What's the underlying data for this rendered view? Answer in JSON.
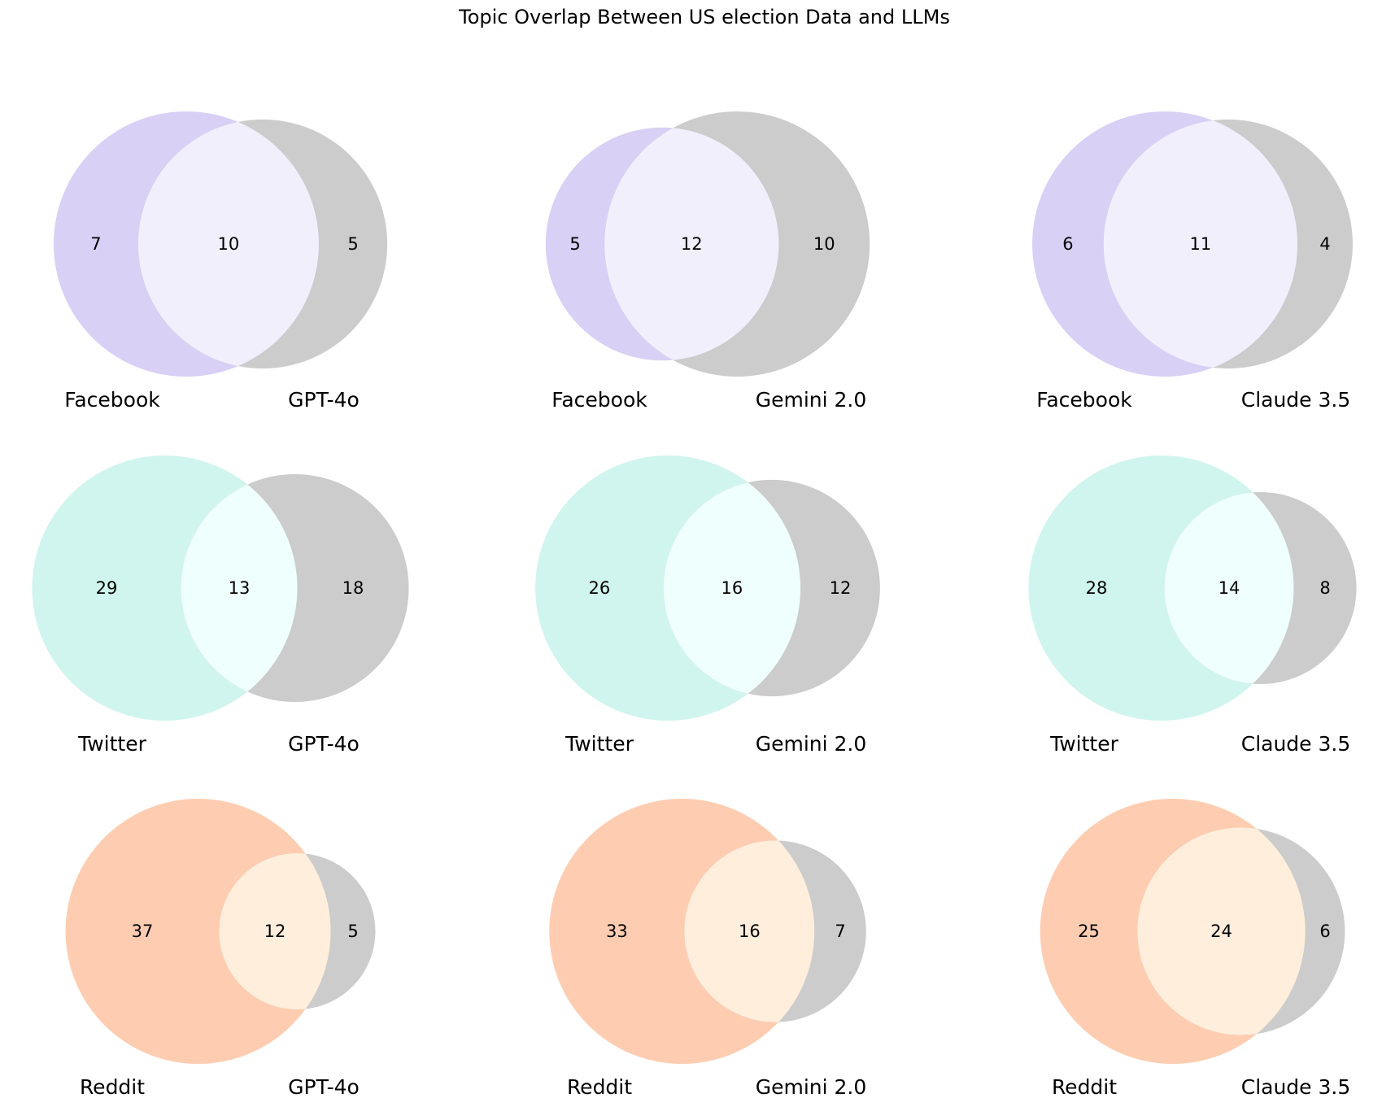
{
  "chart_data": {
    "type": "venn",
    "title": "Topic Overlap Between US election Data and LLMs",
    "colors": {
      "llm": "#cccccc",
      "Facebook": {
        "set": "#d8d0f5",
        "overlap": "#f2effd"
      },
      "Twitter": {
        "set": "#d0f5ee",
        "overlap": "#effffd"
      },
      "Reddit": {
        "set": "#fecdb1",
        "overlap": "#ffeedc"
      }
    },
    "rows": [
      "Facebook",
      "Twitter",
      "Reddit"
    ],
    "columns": [
      "GPT-4o",
      "Gemini 2.0",
      "Claude 3.5"
    ],
    "diagrams": [
      {
        "source": "Facebook",
        "model": "GPT-4o",
        "source_only": 7,
        "overlap": 10,
        "model_only": 5
      },
      {
        "source": "Facebook",
        "model": "Gemini 2.0",
        "source_only": 5,
        "overlap": 12,
        "model_only": 10
      },
      {
        "source": "Facebook",
        "model": "Claude 3.5",
        "source_only": 6,
        "overlap": 11,
        "model_only": 4
      },
      {
        "source": "Twitter",
        "model": "GPT-4o",
        "source_only": 29,
        "overlap": 13,
        "model_only": 18
      },
      {
        "source": "Twitter",
        "model": "Gemini 2.0",
        "source_only": 26,
        "overlap": 16,
        "model_only": 12
      },
      {
        "source": "Twitter",
        "model": "Claude 3.5",
        "source_only": 28,
        "overlap": 14,
        "model_only": 8
      },
      {
        "source": "Reddit",
        "model": "GPT-4o",
        "source_only": 37,
        "overlap": 12,
        "model_only": 5
      },
      {
        "source": "Reddit",
        "model": "Gemini 2.0",
        "source_only": 33,
        "overlap": 16,
        "model_only": 7
      },
      {
        "source": "Reddit",
        "model": "Claude 3.5",
        "source_only": 25,
        "overlap": 24,
        "model_only": 6
      }
    ]
  }
}
